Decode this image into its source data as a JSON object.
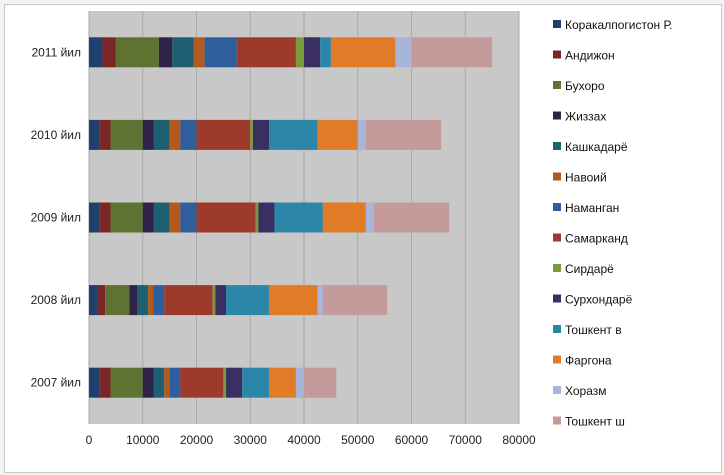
{
  "chart_data": {
    "type": "bar",
    "orientation": "horizontal",
    "stacked": true,
    "title": "",
    "xlabel": "",
    "ylabel": "",
    "xlim": [
      0,
      80000
    ],
    "x_ticks": [
      "0",
      "10000",
      "20000",
      "30000",
      "40000",
      "50000",
      "60000",
      "70000",
      "80000"
    ],
    "grid": true,
    "legend_position": "right",
    "plot_background": "#c8c8c8",
    "categories": [
      "2011 йил",
      "2010 йил",
      "2009 йил",
      "2008 йил",
      "2007 йил"
    ],
    "series": [
      {
        "name": "Коракалпогистон Р.",
        "color": "#1f3f6e",
        "values": [
          2500,
          2000,
          2000,
          1500,
          2000
        ]
      },
      {
        "name": "Андижон",
        "color": "#7a2626",
        "values": [
          2500,
          2000,
          2000,
          1500,
          2000
        ]
      },
      {
        "name": "Бухоро",
        "color": "#5e7332",
        "values": [
          8000,
          6000,
          6000,
          4500,
          6000
        ]
      },
      {
        "name": "Жиззах",
        "color": "#2f2448",
        "values": [
          2500,
          2000,
          2000,
          1500,
          2000
        ]
      },
      {
        "name": "Кашкадарё",
        "color": "#1f5f72",
        "values": [
          4000,
          3000,
          3000,
          2000,
          2000
        ]
      },
      {
        "name": "Навоий",
        "color": "#b35a1f",
        "values": [
          2000,
          2000,
          2000,
          1000,
          1000
        ]
      },
      {
        "name": "Наманган",
        "color": "#2e5f9c",
        "values": [
          6000,
          3000,
          3000,
          2000,
          2000
        ]
      },
      {
        "name": "Самарканд",
        "color": "#9e3a2c",
        "values": [
          11000,
          10000,
          11000,
          9000,
          8000
        ]
      },
      {
        "name": "Сирдарё",
        "color": "#7c9a3c",
        "values": [
          1500,
          500,
          500,
          500,
          500
        ]
      },
      {
        "name": "Сурхондарё",
        "color": "#3a2f60",
        "values": [
          3000,
          3000,
          3000,
          2000,
          3000
        ]
      },
      {
        "name": "Тошкент в",
        "color": "#2b86a8",
        "values": [
          2000,
          9000,
          9000,
          8000,
          5000
        ]
      },
      {
        "name": "Фаргона",
        "color": "#e07c28",
        "values": [
          12000,
          7500,
          8000,
          9000,
          5000
        ]
      },
      {
        "name": "Хоразм",
        "color": "#a8b4d8",
        "values": [
          3000,
          1500,
          1500,
          1000,
          1500
        ]
      },
      {
        "name": "Тошкент ш",
        "color": "#c49a9a",
        "values": [
          15000,
          14000,
          14000,
          12000,
          6000
        ]
      }
    ]
  }
}
